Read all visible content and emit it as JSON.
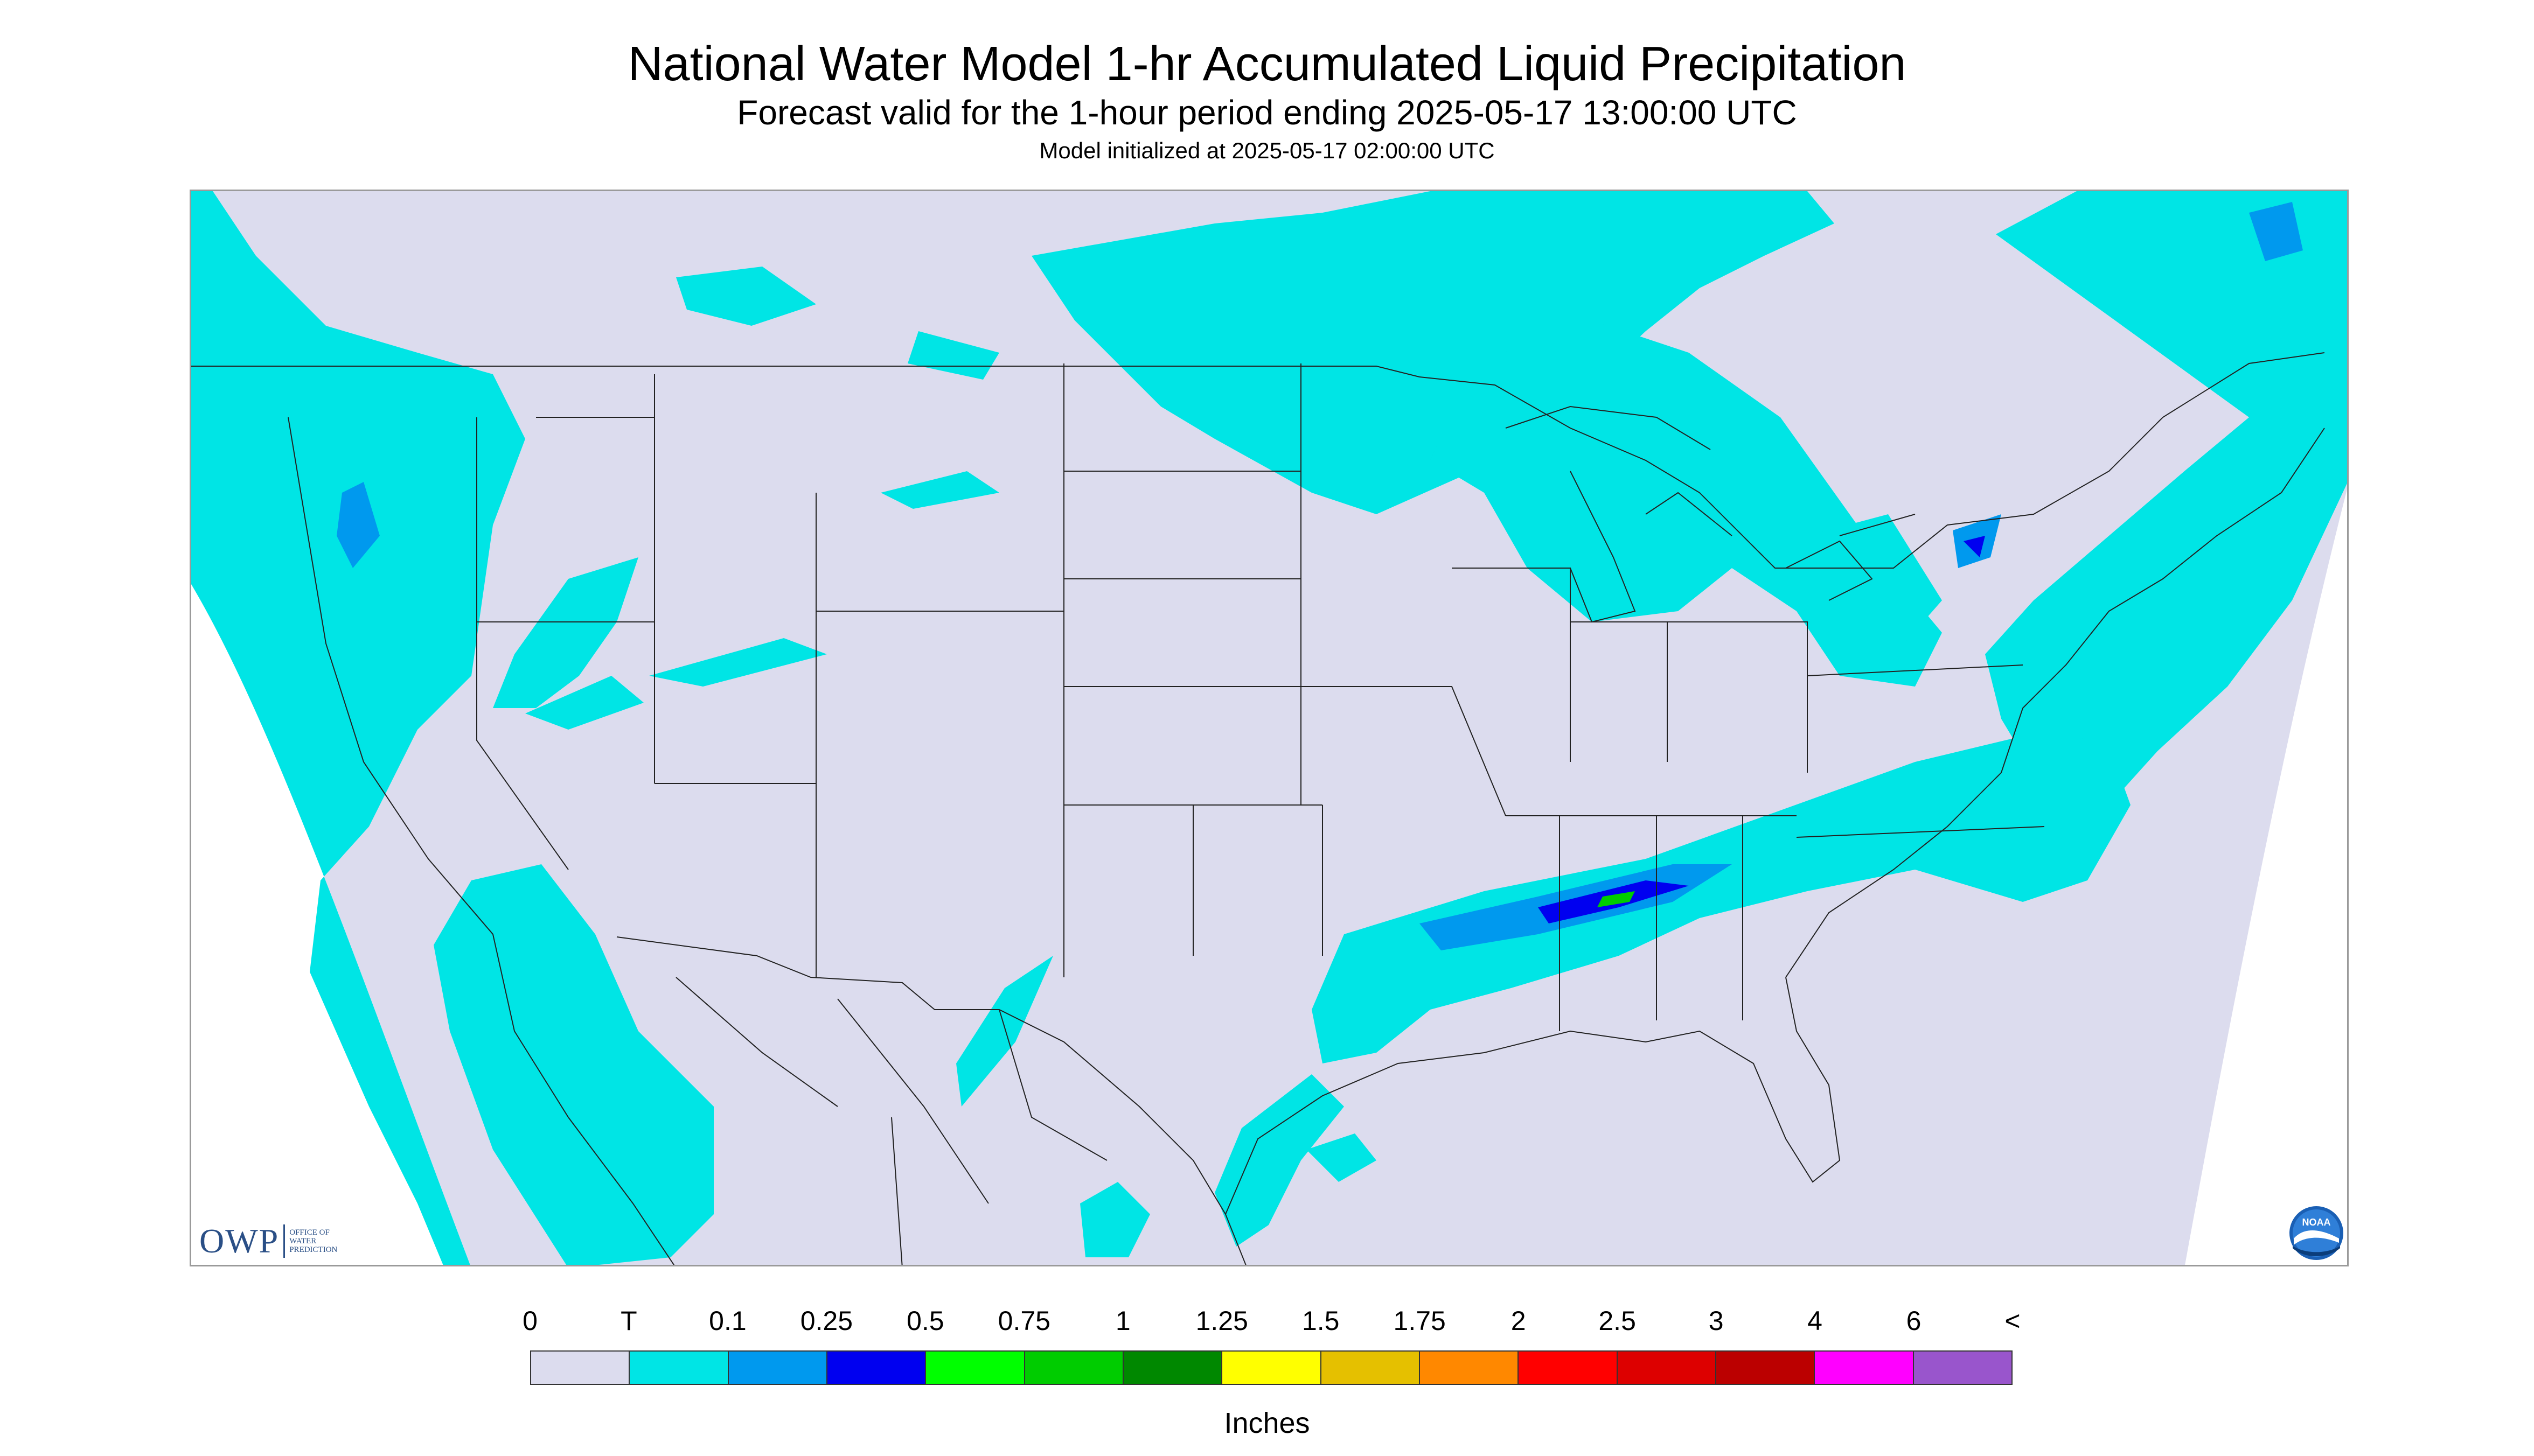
{
  "header": {
    "title": "National Water Model 1-hr Accumulated Liquid Precipitation",
    "subtitle": "Forecast valid for the 1-hour period ending 2025-05-17 13:00:00 UTC",
    "init": "Model initialized at 2025-05-17 02:00:00 UTC"
  },
  "logos": {
    "owp_text": "OWP",
    "owp_sub": [
      "OFFICE OF",
      "WATER",
      "PREDICTION"
    ],
    "noaa_text": "NOAA"
  },
  "legend": {
    "ticks": [
      "0",
      "T",
      "0.1",
      "0.25",
      "0.5",
      "0.75",
      "1",
      "1.25",
      "1.5",
      "1.75",
      "2",
      "2.5",
      "3",
      "4",
      "6",
      "<"
    ],
    "colors": [
      "#dcdcee",
      "#00e5e5",
      "#0099ee",
      "#0000f0",
      "#00ff00",
      "#00cc00",
      "#008800",
      "#ffff00",
      "#e5c000",
      "#ff8800",
      "#ff0000",
      "#dd0000",
      "#bb0000",
      "#ff00ff",
      "#9955cc"
    ],
    "units": "Inches"
  },
  "map": {
    "domain_color": "#dcdcee",
    "outside_color": "#ffffff",
    "border_color": "#222222",
    "precip_regions": [
      {
        "name": "pacific-northwest",
        "category": "T"
      },
      {
        "name": "california-coast",
        "category": "T"
      },
      {
        "name": "baja-pacific",
        "category": "T"
      },
      {
        "name": "northern-plains",
        "category": "T"
      },
      {
        "name": "great-lakes",
        "category": "T"
      },
      {
        "name": "northeast",
        "category": "T"
      },
      {
        "name": "tennessee-valley-band",
        "category": "0.25"
      },
      {
        "name": "carolinas",
        "category": "T"
      },
      {
        "name": "gulf-coast-texas",
        "category": "T"
      }
    ]
  }
}
